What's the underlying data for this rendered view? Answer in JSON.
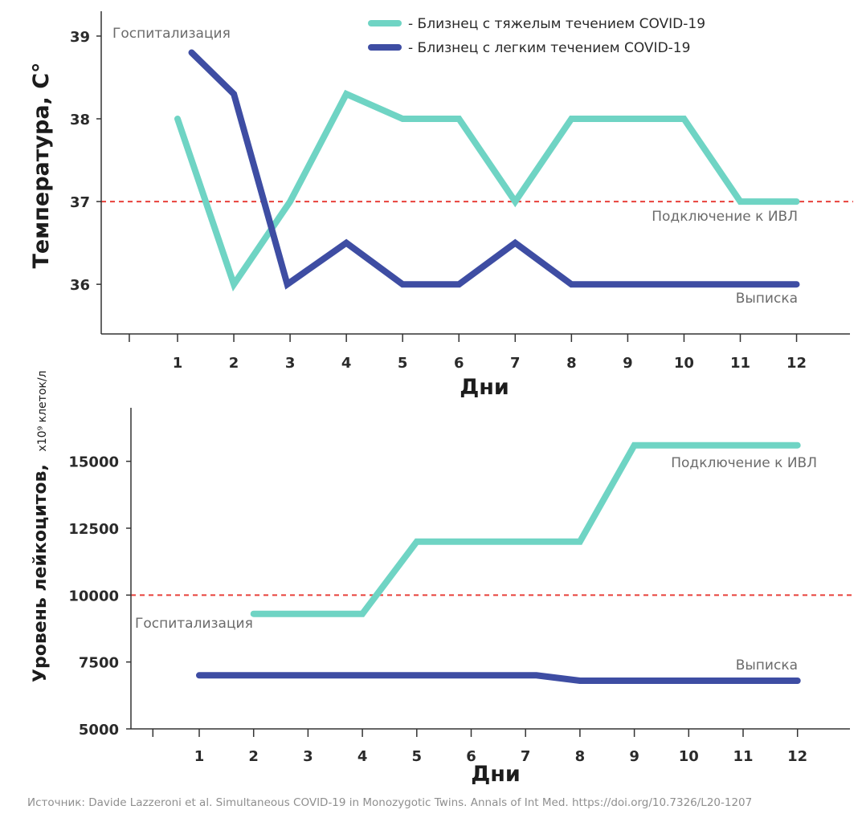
{
  "colors": {
    "severe": "#6fd4c4",
    "mild": "#3e4da3",
    "threshold": "#e8413b",
    "axis": "#333333",
    "annotation": "#6b6b6b"
  },
  "legend": {
    "severe_label": "- Близнец с тяжелым течением COVID-19",
    "mild_label": "- Близнец с легким течением COVID-19"
  },
  "source": "Источник: Davide Lazzeroni et al. Simultaneous COVID-19 in Monozygotic Twins. Annals of Int Med. https://doi.org/10.7326/L20-1207",
  "chart_data": [
    {
      "type": "line",
      "title": "",
      "xlabel": "Дни",
      "ylabel": "Температура, С°",
      "categories": [
        "1",
        "2",
        "3",
        "4",
        "5",
        "6",
        "7",
        "8",
        "9",
        "10",
        "11",
        "12"
      ],
      "yticks": [
        "36",
        "37",
        "38",
        "39"
      ],
      "ylim": [
        35.4,
        39.3
      ],
      "threshold": 37,
      "series": [
        {
          "name": "Близнец с тяжелым течением COVID-19",
          "key": "severe",
          "x": [
            1,
            2,
            3,
            4,
            5,
            6,
            7,
            8,
            9,
            10,
            11,
            12
          ],
          "y": [
            38.0,
            36.0,
            37.0,
            38.3,
            38.0,
            38.0,
            37.0,
            38.0,
            38.0,
            38.0,
            37.0,
            37.0
          ]
        },
        {
          "name": "Близнец с легким течением COVID-19",
          "key": "mild",
          "x": [
            1.25,
            2,
            2.95,
            4,
            5,
            6,
            7,
            8,
            12
          ],
          "y": [
            38.8,
            38.3,
            36.0,
            36.5,
            36.0,
            36.0,
            36.5,
            36.0,
            36.0
          ]
        }
      ],
      "annotations": {
        "hospitalization": "Госпитализация",
        "ventilation": "Подключение к ИВЛ",
        "discharge": "Выписка"
      }
    },
    {
      "type": "line",
      "title": "",
      "xlabel": "Дни",
      "ylabel": "Уровень лейкоцитов,",
      "ylabel_unit": "x10⁹ клеток/л",
      "categories": [
        "1",
        "2",
        "3",
        "4",
        "5",
        "6",
        "7",
        "8",
        "9",
        "10",
        "11",
        "12"
      ],
      "yticks": [
        "5000",
        "7500",
        "10000",
        "12500",
        "15000"
      ],
      "ylim": [
        5000,
        17000
      ],
      "threshold": 10000,
      "series": [
        {
          "name": "Близнец с тяжелым течением COVID-19",
          "key": "severe",
          "x": [
            2,
            4,
            5,
            8,
            9,
            12
          ],
          "y": [
            9300,
            9300,
            12000,
            12000,
            15600,
            15600
          ]
        },
        {
          "name": "Близнец с легким течением COVID-19",
          "key": "mild",
          "x": [
            1,
            7.2,
            8,
            12
          ],
          "y": [
            7000,
            7000,
            6800,
            6800
          ]
        }
      ],
      "annotations": {
        "hospitalization": "Госпитализация",
        "ventilation": "Подключение к ИВЛ",
        "discharge": "Выписка"
      }
    }
  ]
}
